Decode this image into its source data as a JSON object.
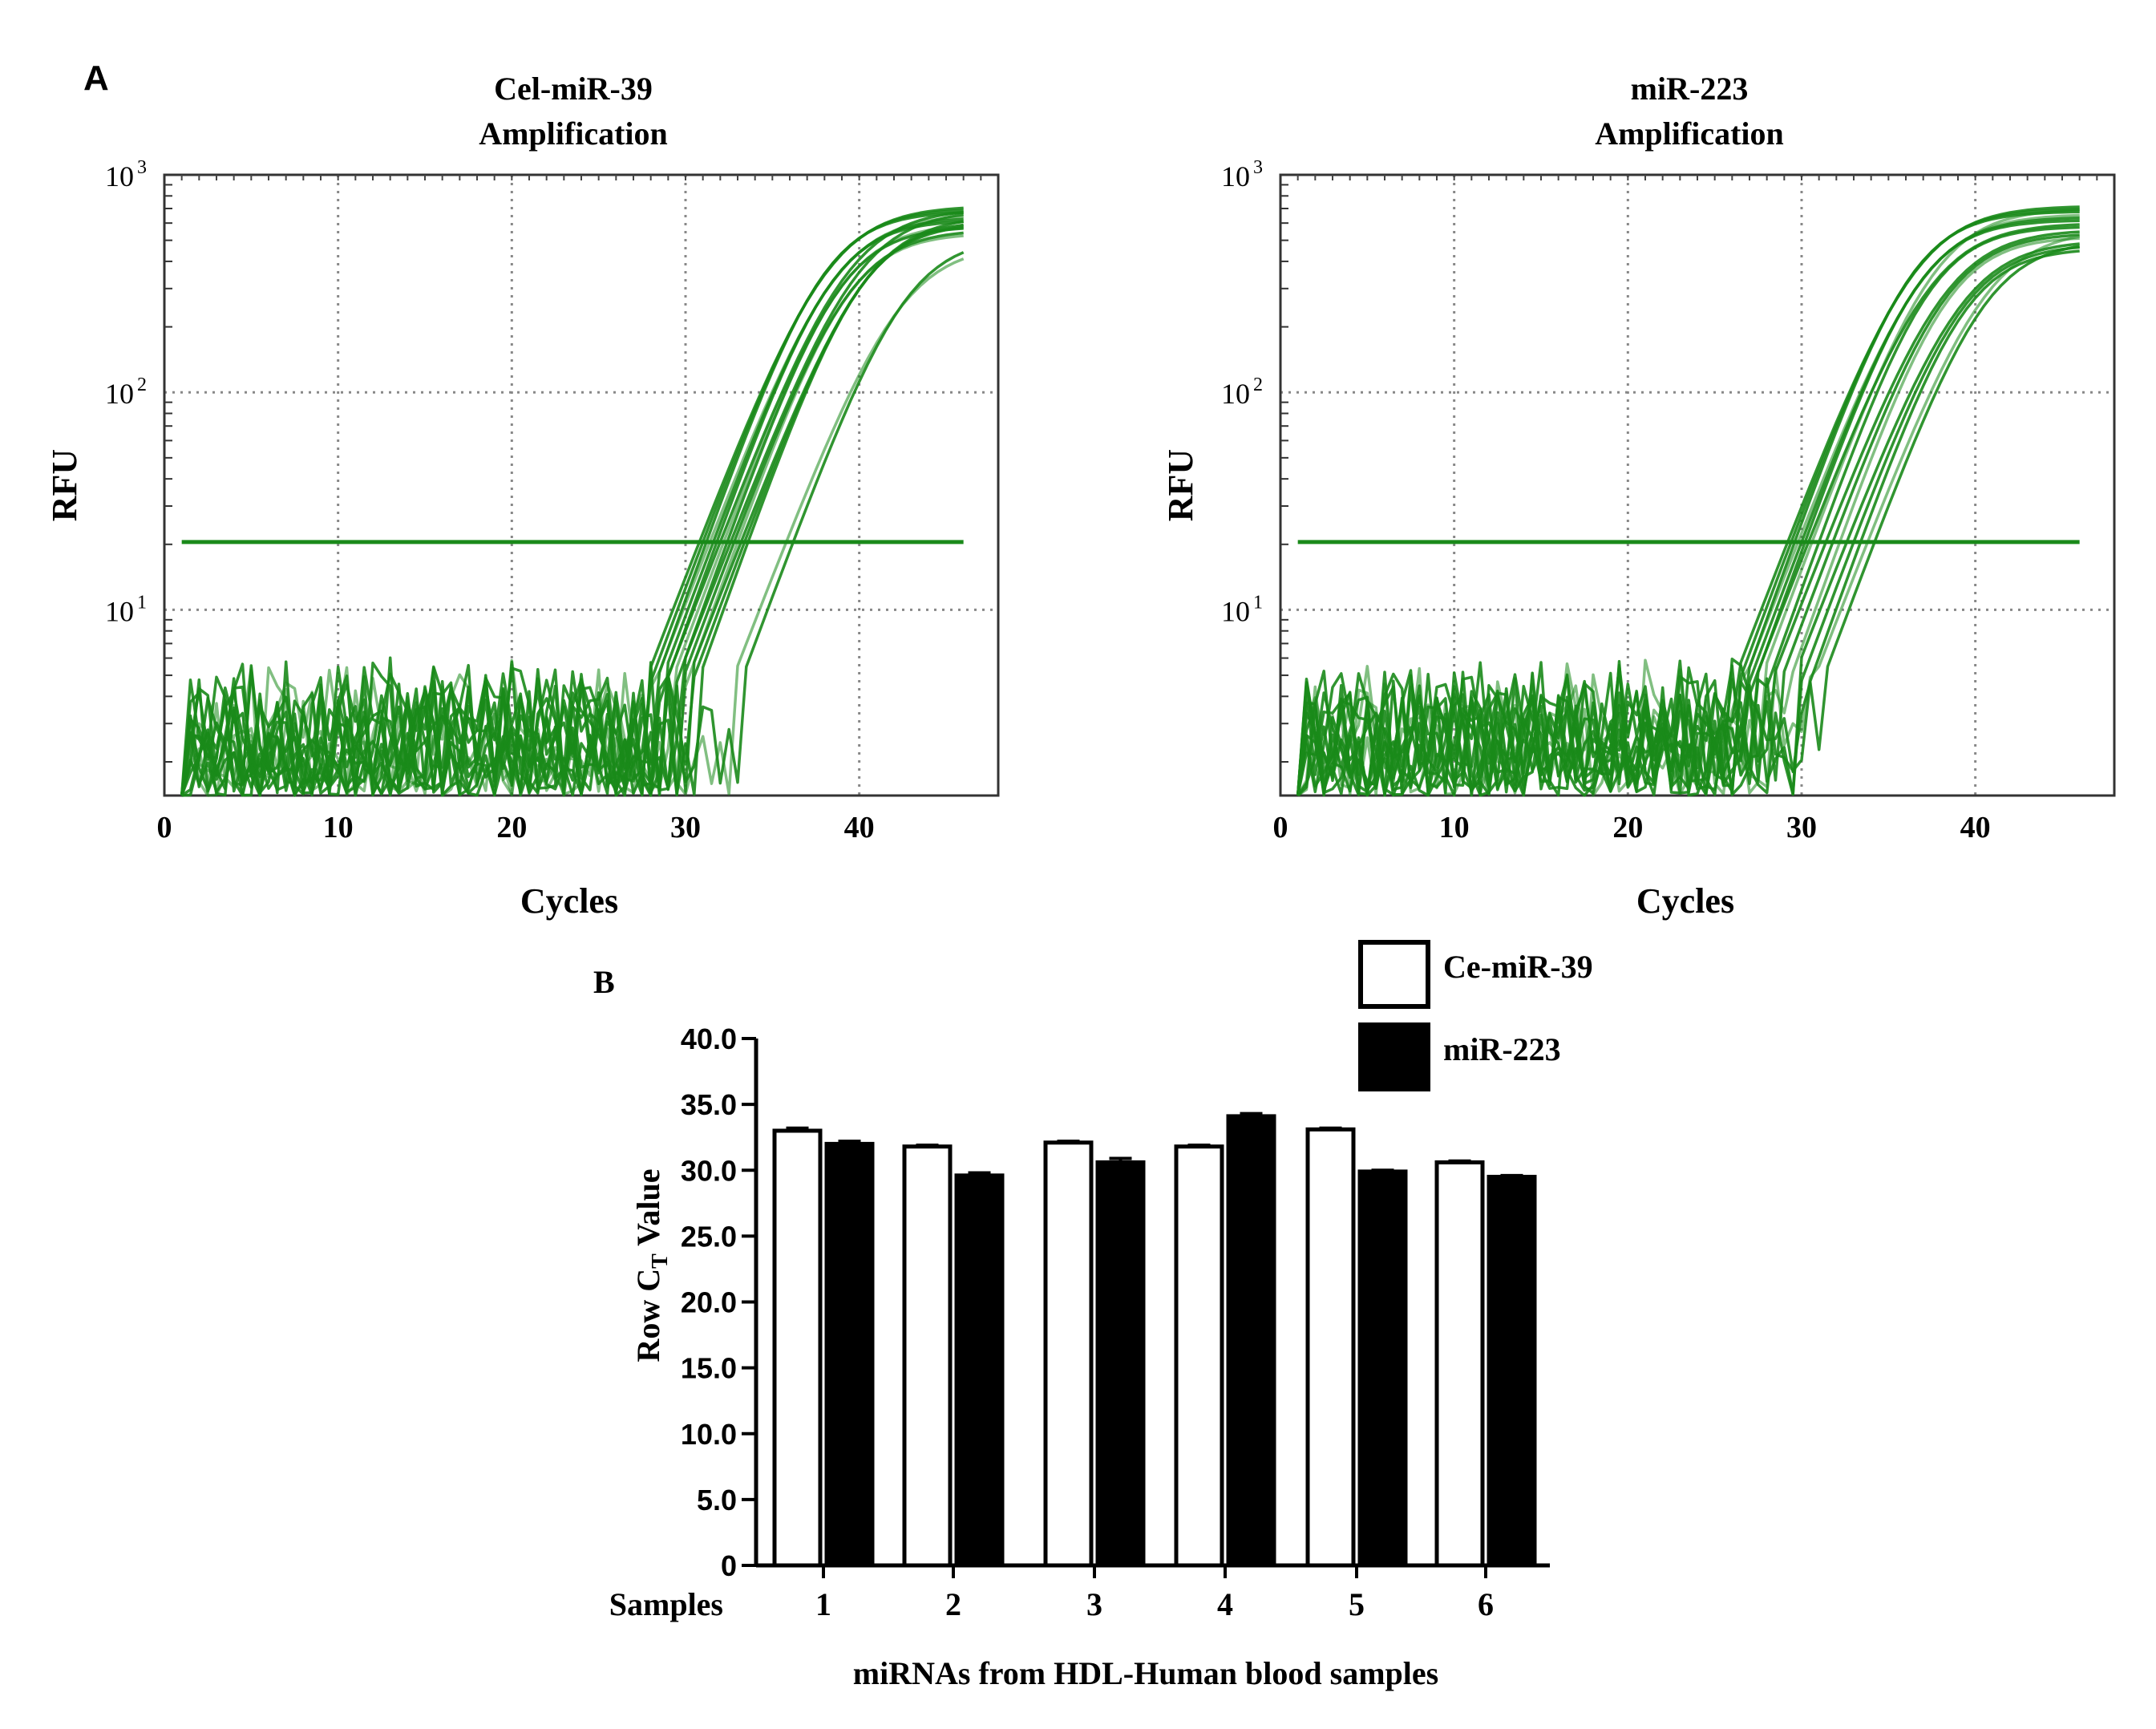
{
  "figure": {
    "panel_a_label": "A",
    "panel_b_label": "B"
  },
  "chart_data": [
    {
      "type": "line",
      "title": "Cel-miR-39",
      "subtitle": "Amplification",
      "xlabel": "Cycles",
      "ylabel": "RFU",
      "xlim": [
        0,
        48
      ],
      "xticks": [
        0,
        10,
        20,
        30,
        40
      ],
      "ylim": [
        1.4,
        1000
      ],
      "yscale": "log",
      "yticks": [
        {
          "base": "10",
          "exp": "3",
          "value": 1000
        },
        {
          "base": "10",
          "exp": "2",
          "value": 100
        },
        {
          "base": "10",
          "exp": "1",
          "value": 10
        }
      ],
      "grid": true,
      "color": "#1a8a1a",
      "threshold": 20.5,
      "cycle_range": [
        1,
        46
      ],
      "ct_values": [
        30.8,
        31.0,
        31.2,
        31.4,
        31.6,
        31.8,
        32.0,
        32.2,
        32.4,
        32.6,
        32.8,
        33.0,
        33.2,
        33.4,
        33.6,
        35.8,
        36.2
      ],
      "plateaus": [
        720,
        700,
        680,
        660,
        640,
        620,
        700,
        600,
        580,
        690,
        560,
        540,
        650,
        620,
        600,
        480,
        520
      ]
    },
    {
      "type": "line",
      "title": "miR-223",
      "subtitle": "Amplification",
      "xlabel": "Cycles",
      "ylabel": "RFU",
      "xlim": [
        0,
        48
      ],
      "xticks": [
        0,
        10,
        20,
        30,
        40
      ],
      "ylim": [
        1.4,
        1000
      ],
      "yscale": "log",
      "yticks": [
        {
          "base": "10",
          "exp": "3",
          "value": 1000
        },
        {
          "base": "10",
          "exp": "2",
          "value": 100
        },
        {
          "base": "10",
          "exp": "1",
          "value": 10
        }
      ],
      "grid": true,
      "color": "#1a8a1a",
      "threshold": 20.5,
      "cycle_range": [
        1,
        46
      ],
      "ct_values": [
        29.2,
        29.4,
        29.6,
        29.8,
        30.0,
        30.2,
        30.4,
        30.6,
        31.0,
        31.4,
        31.8,
        32.2,
        32.6,
        33.0,
        33.4,
        33.8,
        34.2
      ],
      "plateaus": [
        720,
        700,
        680,
        660,
        640,
        620,
        600,
        700,
        580,
        560,
        540,
        520,
        500,
        480,
        460,
        560,
        500
      ]
    },
    {
      "type": "bar",
      "title": "",
      "xlabel": "miRNAs from HDL-Human blood samples",
      "ylabel_main": "Row C",
      "ylabel_sub": "T",
      "ylabel_tail": " Value",
      "category_axis_label": "Samples",
      "categories": [
        "1",
        "2",
        "3",
        "4",
        "5",
        "6"
      ],
      "ylim": [
        0,
        40
      ],
      "yticks": [
        0,
        5,
        10,
        15,
        20,
        25,
        30,
        35,
        40
      ],
      "series": [
        {
          "name": "Ce-miR-39",
          "values": [
            33.0,
            31.8,
            32.1,
            31.8,
            33.1,
            30.6
          ],
          "errors": [
            0.2,
            0.1,
            0.1,
            0.1,
            0.1,
            0.1
          ],
          "fill": "#ffffff"
        },
        {
          "name": "miR-223",
          "values": [
            32.0,
            29.6,
            30.6,
            34.1,
            29.9,
            29.5
          ],
          "errors": [
            0.2,
            0.2,
            0.3,
            0.2,
            0.1,
            0.1
          ],
          "fill": "#000000"
        }
      ],
      "legend_position": "top-right"
    }
  ]
}
